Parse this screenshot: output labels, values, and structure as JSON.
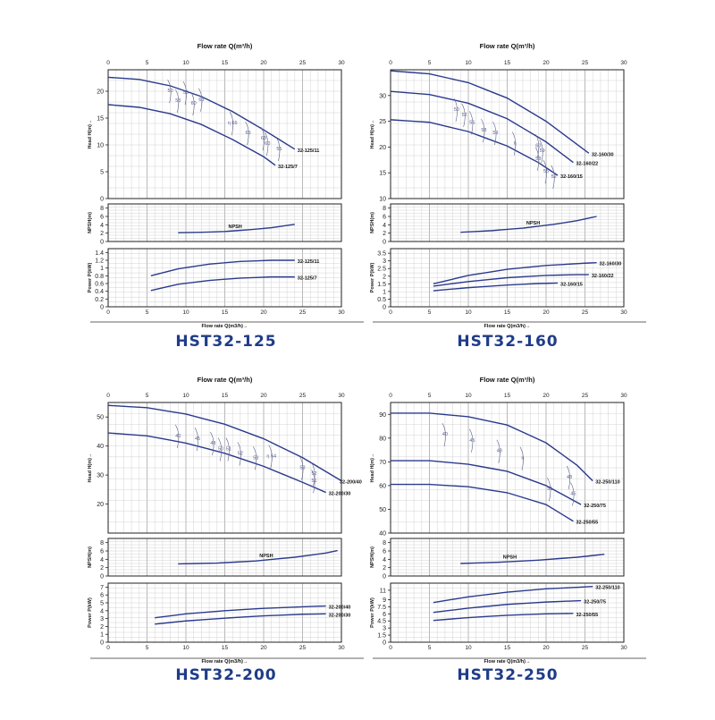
{
  "colors": {
    "curve": "#2b3a8c",
    "efficiency": "#5a5f8a",
    "grid": "#c8c8c8",
    "axis": "#222222",
    "title": "#1f3c88"
  },
  "chart_data": [
    {
      "model": "HST32-125",
      "type": "line",
      "top_xlabel": "Flow rate Q(m³/h)",
      "bottom_xlabel": "Flow rate Q(m3/h)→",
      "xlim": [
        0,
        30
      ],
      "xticks": [
        0,
        5,
        10,
        15,
        20,
        25,
        30
      ],
      "head": {
        "ylabel": "Head H(m)→",
        "ylim": [
          0,
          24
        ],
        "yticks": [
          0,
          5,
          10,
          15,
          20
        ],
        "series": [
          {
            "name": "32-125/11",
            "x": [
              0,
              4,
              8,
              12,
              16,
              20,
              24
            ],
            "y": [
              22.6,
              22.2,
              21,
              19,
              16.2,
              12.8,
              9.2
            ]
          },
          {
            "name": "32-125/7",
            "x": [
              0,
              4,
              8,
              12,
              16,
              20,
              21.5
            ],
            "y": [
              17.5,
              17,
              15.8,
              13.8,
              11,
              7.8,
              6.2
            ]
          }
        ],
        "efficiency_labels": [
          "50",
          "53",
          "55",
          "60",
          "63",
          "η 66",
          "65",
          "63",
          "60",
          "55"
        ]
      },
      "npsh": {
        "ylabel": "NPSH(m)",
        "ylim": [
          0,
          9
        ],
        "yticks": [
          0,
          2,
          4,
          6,
          8
        ],
        "label": "NPSH",
        "series": [
          {
            "name": "NPSH",
            "x": [
              9,
              12,
              15,
              18,
              21,
              24
            ],
            "y": [
              2.1,
              2.2,
              2.4,
              2.8,
              3.3,
              4.1
            ]
          }
        ]
      },
      "power": {
        "ylabel": "Power P(kW)",
        "ylim": [
          0,
          1.5
        ],
        "yticks": [
          0,
          0.2,
          0.4,
          0.6,
          0.8,
          1,
          1.2,
          1.4
        ],
        "series": [
          {
            "name": "32-125/11",
            "x": [
              5.5,
              9,
              13,
              17,
              21,
              24
            ],
            "y": [
              0.8,
              0.98,
              1.1,
              1.17,
              1.2,
              1.2
            ]
          },
          {
            "name": "32-125/7",
            "x": [
              5.5,
              9,
              13,
              17,
              21,
              24
            ],
            "y": [
              0.42,
              0.58,
              0.68,
              0.74,
              0.77,
              0.77
            ]
          }
        ]
      }
    },
    {
      "model": "HST32-160",
      "type": "line",
      "top_xlabel": "Flow rate Q(m³/h)",
      "bottom_xlabel": "Flow rate Q(m3/h)→",
      "xlim": [
        0,
        30
      ],
      "xticks": [
        0,
        5,
        10,
        15,
        20,
        25,
        30
      ],
      "head": {
        "ylabel": "Head H(m)→",
        "ylim": [
          10,
          35
        ],
        "yticks": [
          10,
          15,
          20,
          25,
          30
        ],
        "series": [
          {
            "name": "32-160/30",
            "x": [
              0,
              5,
              10,
              15,
              20,
              24,
              25.5
            ],
            "y": [
              34.8,
              34.2,
              32.5,
              29.5,
              25,
              20.5,
              18.8
            ]
          },
          {
            "name": "32-160/22",
            "x": [
              0,
              5,
              10,
              15,
              20,
              23.5
            ],
            "y": [
              30.8,
              30.2,
              28.5,
              25.5,
              21,
              17
            ]
          },
          {
            "name": "32-160/15",
            "x": [
              0,
              5,
              10,
              15,
              19,
              21.5
            ],
            "y": [
              25.3,
              24.8,
              23,
              20.2,
              17,
              14.5
            ]
          }
        ],
        "efficiency_labels": [
          "50",
          "52",
          "55",
          "58",
          "59",
          "η",
          "60",
          "59",
          "58",
          "55",
          "52"
        ]
      },
      "npsh": {
        "ylabel": "NPSH(m)",
        "ylim": [
          0,
          9
        ],
        "yticks": [
          0,
          2,
          4,
          6,
          8
        ],
        "label": "NPSH",
        "series": [
          {
            "name": "NPSH",
            "x": [
              9,
              13,
              17,
              21,
              24,
              26.5
            ],
            "y": [
              2.2,
              2.6,
              3.2,
              4.1,
              5,
              6
            ]
          }
        ]
      },
      "power": {
        "ylabel": "Power P(kW)",
        "ylim": [
          0,
          3.8
        ],
        "yticks": [
          0,
          0.5,
          1,
          1.5,
          2,
          2.5,
          3,
          3.5
        ],
        "series": [
          {
            "name": "32-160/30",
            "x": [
              5.5,
              10,
              15,
              20,
              25,
              26.5
            ],
            "y": [
              1.5,
              2.05,
              2.45,
              2.7,
              2.85,
              2.88
            ]
          },
          {
            "name": "32-160/22",
            "x": [
              5.5,
              10,
              15,
              20,
              24,
              25.5
            ],
            "y": [
              1.35,
              1.65,
              1.9,
              2.05,
              2.1,
              2.1
            ]
          },
          {
            "name": "32-160/15",
            "x": [
              5.5,
              10,
              15,
              19,
              21.5
            ],
            "y": [
              1.05,
              1.25,
              1.42,
              1.52,
              1.55
            ]
          }
        ]
      }
    },
    {
      "model": "HST32-200",
      "type": "line",
      "top_xlabel": "Flow rate Q(m³/h)",
      "bottom_xlabel": "Flow rate Q(m3/h)→",
      "xlim": [
        0,
        30
      ],
      "xticks": [
        0,
        5,
        10,
        15,
        20,
        25,
        30
      ],
      "head": {
        "ylabel": "Head H(m)→",
        "ylim": [
          10,
          55
        ],
        "yticks": [
          20,
          30,
          40,
          50
        ],
        "series": [
          {
            "name": "32-200/40",
            "x": [
              0,
              5,
              10,
              15,
              20,
              25,
              30
            ],
            "y": [
              54,
              53.2,
              51,
              47.5,
              42.5,
              36,
              28
            ]
          },
          {
            "name": "32-200/30",
            "x": [
              0,
              5,
              10,
              15,
              20,
              25,
              28
            ],
            "y": [
              44.5,
              43.5,
              41,
              37.5,
              33,
              27.5,
              24
            ]
          }
        ],
        "efficiency_labels": [
          "40",
          "45",
          "48",
          "50",
          "51",
          "52",
          "53",
          "η 54",
          "53",
          "52",
          "51"
        ]
      },
      "npsh": {
        "ylabel": "NPSH(m)",
        "ylim": [
          0,
          9
        ],
        "yticks": [
          0,
          2,
          4,
          6,
          8
        ],
        "label": "NPSH",
        "series": [
          {
            "name": "NPSH",
            "x": [
              9,
              14,
              19,
              24,
              28,
              29.5
            ],
            "y": [
              2.9,
              3.1,
              3.6,
              4.5,
              5.5,
              6.1
            ]
          }
        ]
      },
      "power": {
        "ylabel": "Power P(kW)",
        "ylim": [
          0,
          7.5
        ],
        "yticks": [
          0,
          1,
          2,
          3,
          4,
          5,
          6,
          7
        ],
        "series": [
          {
            "name": "32-200/40",
            "x": [
              6,
              10,
              15,
              20,
              25,
              28
            ],
            "y": [
              3.1,
              3.6,
              4,
              4.3,
              4.5,
              4.6
            ]
          },
          {
            "name": "32-200/30",
            "x": [
              6,
              10,
              15,
              20,
              25,
              28
            ],
            "y": [
              2.3,
              2.7,
              3.05,
              3.35,
              3.55,
              3.6
            ]
          }
        ]
      }
    },
    {
      "model": "HST32-250",
      "type": "line",
      "top_xlabel": "Flow rate Q(m³/h)",
      "bottom_xlabel": "Flow rate Q(m3/h)→",
      "xlim": [
        0,
        30
      ],
      "xticks": [
        0,
        5,
        10,
        15,
        20,
        25,
        30
      ],
      "head": {
        "ylabel": "Head H(m)→",
        "ylim": [
          40,
          95
        ],
        "yticks": [
          40,
          50,
          60,
          70,
          80,
          90
        ],
        "series": [
          {
            "name": "32-250/110",
            "x": [
              0,
              5,
              10,
              15,
              20,
              24,
              26
            ],
            "y": [
              90.5,
              90.5,
              89,
              85.5,
              78,
              68.5,
              62
            ]
          },
          {
            "name": "32-250/75",
            "x": [
              0,
              5,
              10,
              15,
              20,
              24.5
            ],
            "y": [
              70.5,
              70.5,
              69,
              66,
              60,
              52
            ]
          },
          {
            "name": "32-250/55",
            "x": [
              0,
              5,
              10,
              15,
              20,
              23.5
            ],
            "y": [
              60.5,
              60.5,
              59.5,
              57,
              52,
              45
            ]
          }
        ],
        "efficiency_labels": [
          "40",
          "45",
          "48",
          "η",
          "51",
          "48",
          "45"
        ]
      },
      "npsh": {
        "ylabel": "NPSH(m)",
        "ylim": [
          0,
          9
        ],
        "yticks": [
          0,
          2,
          4,
          6,
          8
        ],
        "label": "NPSH",
        "series": [
          {
            "name": "NPSH",
            "x": [
              9,
              14,
              19,
              24,
              27.5
            ],
            "y": [
              3,
              3.3,
              3.8,
              4.5,
              5.2
            ]
          }
        ]
      },
      "power": {
        "ylabel": "Power P(kW)",
        "ylim": [
          0,
          12.5
        ],
        "yticks": [
          0,
          1.5,
          3,
          4.5,
          6,
          7.5,
          9,
          11
        ],
        "series": [
          {
            "name": "32-250/110",
            "x": [
              5.5,
              10,
              15,
              20,
              25,
              26
            ],
            "y": [
              8.4,
              9.6,
              10.6,
              11.3,
              11.7,
              11.8
            ]
          },
          {
            "name": "32-250/75",
            "x": [
              5.5,
              10,
              15,
              20,
              24.5
            ],
            "y": [
              6.3,
              7.2,
              8,
              8.5,
              8.8
            ]
          },
          {
            "name": "32-250/55",
            "x": [
              5.5,
              10,
              15,
              20,
              23.5
            ],
            "y": [
              4.6,
              5.2,
              5.7,
              6,
              6.1
            ]
          }
        ]
      }
    }
  ]
}
